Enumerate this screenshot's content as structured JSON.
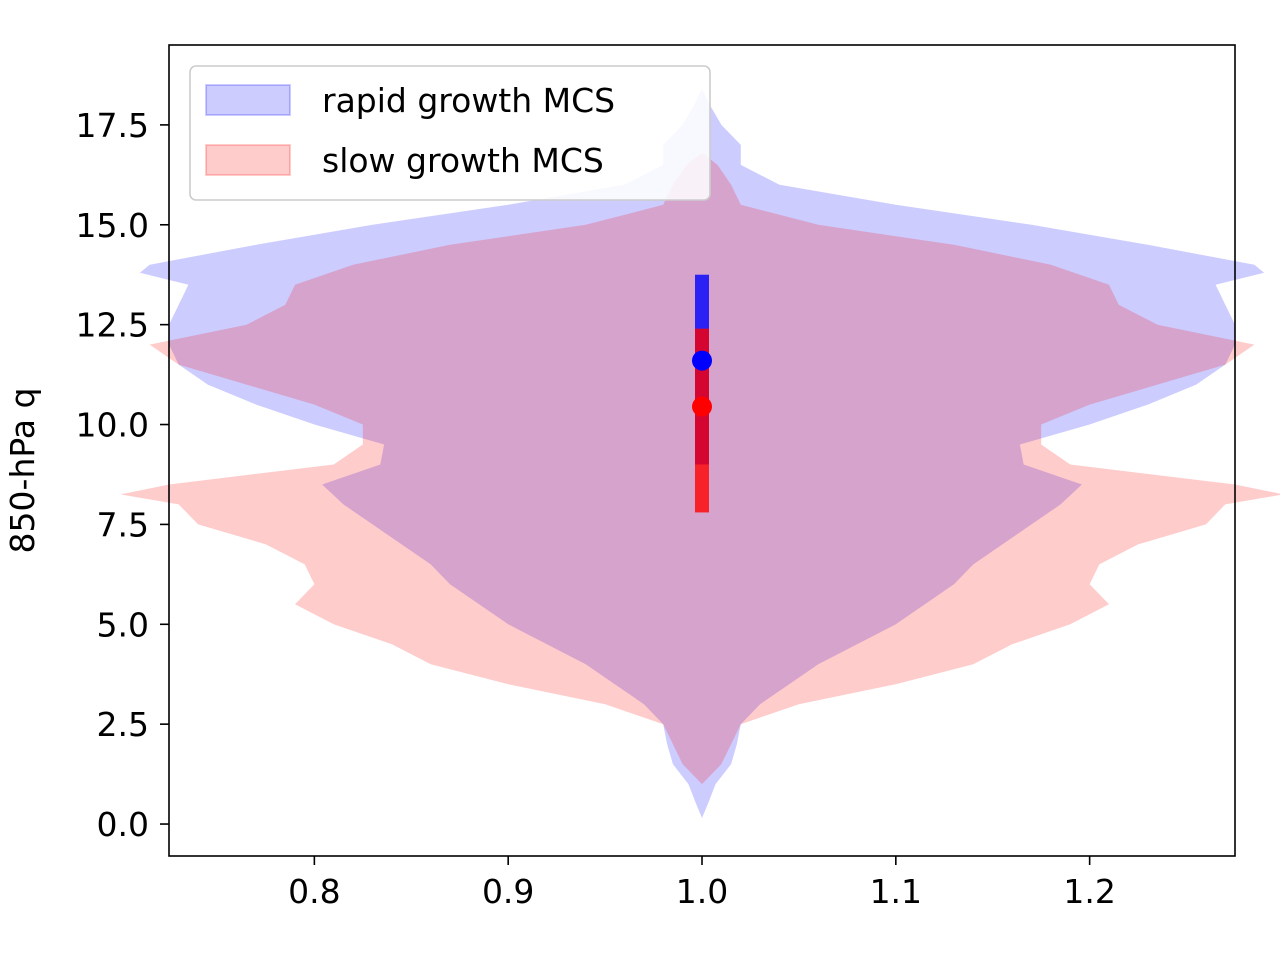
{
  "chart_data": {
    "type": "violin",
    "title": "",
    "xlabel": "",
    "ylabel": "850-hPa q",
    "xlim": [
      0.725,
      1.275
    ],
    "ylim": [
      -0.8,
      19.5
    ],
    "xticks": [
      0.8,
      0.9,
      1.0,
      1.1,
      1.2
    ],
    "xtick_labels": [
      "0.8",
      "0.9",
      "1.0",
      "1.1",
      "1.2"
    ],
    "yticks": [
      0.0,
      2.5,
      5.0,
      7.5,
      10.0,
      12.5,
      15.0,
      17.5
    ],
    "ytick_labels": [
      "0.0",
      "2.5",
      "5.0",
      "7.5",
      "10.0",
      "12.5",
      "15.0",
      "17.5"
    ],
    "grid": false,
    "legend_position": "upper-left",
    "violin_center": 1.0,
    "series": [
      {
        "name": "rapid growth MCS",
        "color": "#0000ff",
        "fill_opacity": 0.2,
        "profile": [
          [
            0.15,
            0.0
          ],
          [
            0.5,
            0.003
          ],
          [
            1.0,
            0.007
          ],
          [
            1.5,
            0.015
          ],
          [
            2.0,
            0.018
          ],
          [
            2.5,
            0.02
          ],
          [
            3.0,
            0.03
          ],
          [
            3.5,
            0.045
          ],
          [
            4.0,
            0.06
          ],
          [
            4.5,
            0.08
          ],
          [
            5.0,
            0.1
          ],
          [
            5.5,
            0.115
          ],
          [
            6.0,
            0.13
          ],
          [
            6.5,
            0.14
          ],
          [
            7.0,
            0.155
          ],
          [
            7.5,
            0.17
          ],
          [
            8.0,
            0.185
          ],
          [
            8.5,
            0.196
          ],
          [
            9.0,
            0.166
          ],
          [
            9.5,
            0.164
          ],
          [
            10.0,
            0.2
          ],
          [
            10.5,
            0.23
          ],
          [
            11.0,
            0.255
          ],
          [
            11.5,
            0.27
          ],
          [
            12.0,
            0.275
          ],
          [
            12.5,
            0.275
          ],
          [
            13.0,
            0.27
          ],
          [
            13.5,
            0.265
          ],
          [
            13.8,
            0.29
          ],
          [
            14.0,
            0.285
          ],
          [
            14.5,
            0.23
          ],
          [
            15.0,
            0.17
          ],
          [
            15.5,
            0.1
          ],
          [
            16.0,
            0.04
          ],
          [
            16.5,
            0.02
          ],
          [
            17.0,
            0.02
          ],
          [
            17.5,
            0.01
          ],
          [
            18.0,
            0.004
          ],
          [
            18.4,
            0.0
          ]
        ],
        "median": 11.6,
        "q1": 9.0,
        "q3": 13.75
      },
      {
        "name": "slow growth MCS",
        "color": "#ff0000",
        "fill_opacity": 0.2,
        "profile": [
          [
            1.0,
            0.0
          ],
          [
            1.5,
            0.01
          ],
          [
            2.0,
            0.015
          ],
          [
            2.5,
            0.02
          ],
          [
            3.0,
            0.05
          ],
          [
            3.5,
            0.1
          ],
          [
            4.0,
            0.14
          ],
          [
            4.5,
            0.16
          ],
          [
            5.0,
            0.19
          ],
          [
            5.5,
            0.21
          ],
          [
            6.0,
            0.2
          ],
          [
            6.5,
            0.205
          ],
          [
            7.0,
            0.225
          ],
          [
            7.5,
            0.26
          ],
          [
            8.0,
            0.27
          ],
          [
            8.25,
            0.3
          ],
          [
            8.5,
            0.275
          ],
          [
            9.0,
            0.19
          ],
          [
            9.5,
            0.175
          ],
          [
            10.0,
            0.175
          ],
          [
            10.5,
            0.2
          ],
          [
            11.0,
            0.235
          ],
          [
            11.5,
            0.27
          ],
          [
            12.0,
            0.285
          ],
          [
            12.5,
            0.235
          ],
          [
            13.0,
            0.215
          ],
          [
            13.5,
            0.21
          ],
          [
            14.0,
            0.18
          ],
          [
            14.5,
            0.13
          ],
          [
            15.0,
            0.06
          ],
          [
            15.5,
            0.02
          ],
          [
            16.0,
            0.015
          ],
          [
            16.5,
            0.008
          ],
          [
            16.8,
            0.0
          ]
        ],
        "median": 10.45,
        "q1": 7.8,
        "q3": 12.4
      }
    ]
  }
}
